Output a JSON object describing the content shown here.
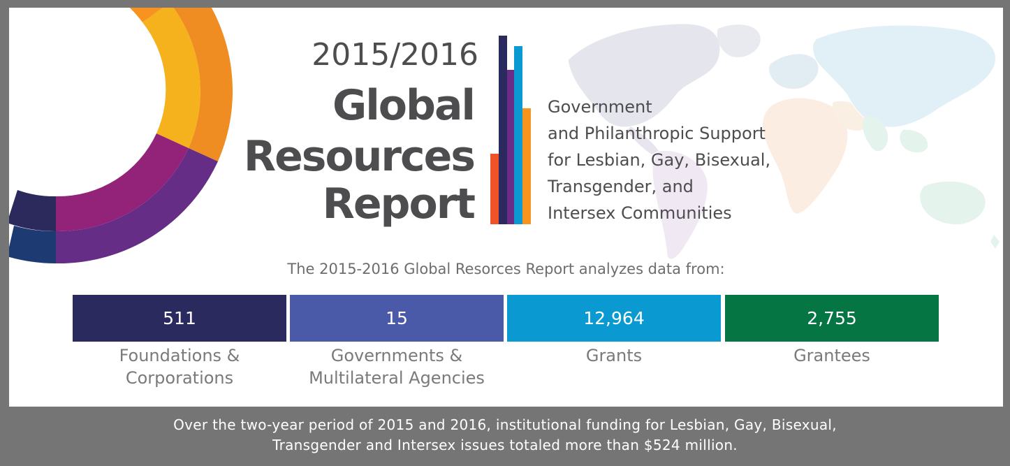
{
  "title": {
    "years": "2015/2016",
    "line1": "Global",
    "line2": "Resources",
    "line3": "Report"
  },
  "subtitle": {
    "lines": [
      "Government",
      "and Philanthropic Support",
      "for Lesbian, Gay, Bisexual,",
      "Transgender, and",
      "Intersex Communities"
    ]
  },
  "intro": "The 2015-2016 Global Resorces Report analyzes data from:",
  "stats": [
    {
      "value": "511",
      "label_lines": [
        "Foundations &",
        "Corporations"
      ],
      "color": "#2b2a5f"
    },
    {
      "value": "15",
      "label_lines": [
        "Governments &",
        "Multilateral Agencies"
      ],
      "color": "#4a5aa8"
    },
    {
      "value": "12,964",
      "label_lines": [
        "Grants"
      ],
      "color": "#0a9ad1"
    },
    {
      "value": "2,755",
      "label_lines": [
        "Grantees"
      ],
      "color": "#057544"
    }
  ],
  "footer": {
    "lines": [
      "Over the two-year period of 2015 and 2016, institutional funding for Lesbian, Gay, Bisexual,",
      "Transgender and Intersex issues totaled more than $524 million."
    ]
  },
  "colors": {
    "background": "#757575",
    "panel": "#ffffff",
    "title_text": "#4d4d4f",
    "bar_red": "#ef5327",
    "bar_navy": "#2b2a5f",
    "bar_purple": "#6a2c86",
    "bar_blue": "#0a9ad1",
    "bar_orange": "#f7941d"
  },
  "icons": {
    "donut": "rainbow-donut-graphic",
    "map": "world-map-graphic",
    "bars": "logo-bar-graphic"
  }
}
